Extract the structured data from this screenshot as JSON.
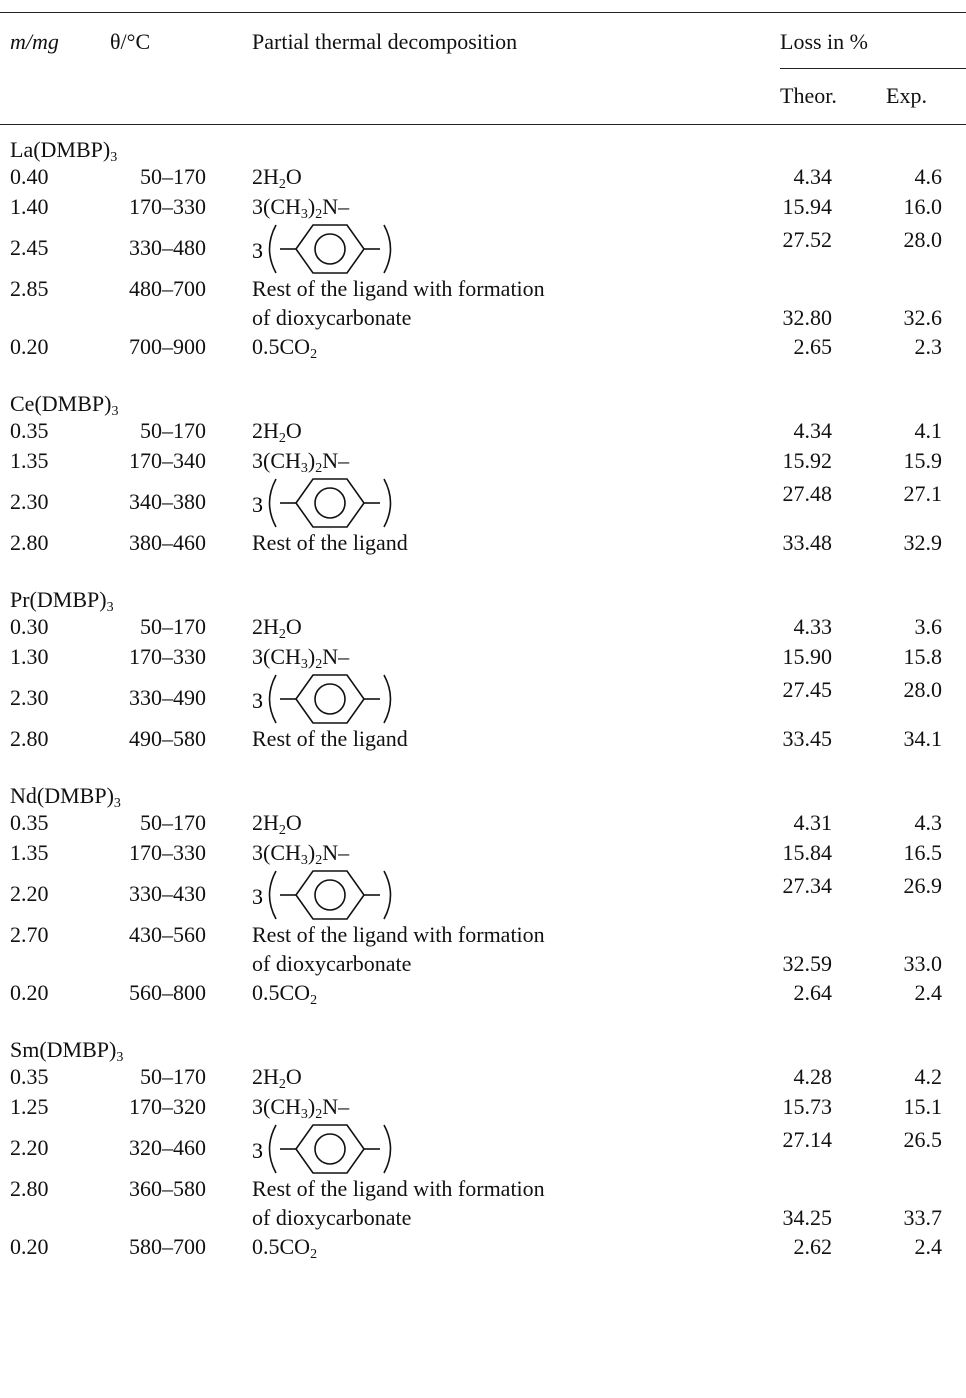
{
  "header": {
    "col_mass": "m/mg",
    "col_temp": "θ/°C",
    "col_desc": "Partial thermal decomposition",
    "col_loss": "Loss in %",
    "col_theor": "Theor.",
    "col_exp": "Exp."
  },
  "groups": [
    {
      "compound": "La(DMBP)₃",
      "rows": [
        {
          "m": "0.40",
          "t": "50–170",
          "desc": "2H₂O",
          "theor": "4.34",
          "exp": "4.6"
        },
        {
          "m": "1.40",
          "t": "170–330",
          "desc": "3(CH₃)₂N–",
          "theor": "15.94",
          "exp": "16.0"
        },
        {
          "m": "2.45",
          "t": "330–480",
          "desc": "",
          "benzene": true,
          "theor": "27.52",
          "exp": "28.0"
        },
        {
          "m": "2.85",
          "t": "480–700",
          "desc": "Rest of the ligand with formation",
          "desc2": "of dioxycarbonate",
          "theor": "32.80",
          "exp": "32.6"
        },
        {
          "m": "0.20",
          "t": "700–900",
          "desc": "0.5CO₂",
          "theor": "2.65",
          "exp": "2.3"
        }
      ]
    },
    {
      "compound": "Ce(DMBP)₃",
      "rows": [
        {
          "m": "0.35",
          "t": "50–170",
          "desc": "2H₂O",
          "theor": "4.34",
          "exp": "4.1"
        },
        {
          "m": "1.35",
          "t": "170–340",
          "desc": "3(CH₃)₂N–",
          "theor": "15.92",
          "exp": "15.9"
        },
        {
          "m": "2.30",
          "t": "340–380",
          "desc": "",
          "benzene": true,
          "theor": "27.48",
          "exp": "27.1"
        },
        {
          "m": "2.80",
          "t": "380–460",
          "desc": "Rest of the ligand",
          "theor": "33.48",
          "exp": "32.9"
        }
      ]
    },
    {
      "compound": "Pr(DMBP)₃",
      "rows": [
        {
          "m": "0.30",
          "t": "50–170",
          "desc": "2H₂O",
          "theor": "4.33",
          "exp": "3.6"
        },
        {
          "m": "1.30",
          "t": "170–330",
          "desc": "3(CH₃)₂N–",
          "theor": "15.90",
          "exp": "15.8"
        },
        {
          "m": "2.30",
          "t": "330–490",
          "desc": "",
          "benzene": true,
          "theor": "27.45",
          "exp": "28.0"
        },
        {
          "m": "2.80",
          "t": "490–580",
          "desc": "Rest of the ligand",
          "theor": "33.45",
          "exp": "34.1"
        }
      ]
    },
    {
      "compound": "Nd(DMBP)₃",
      "rows": [
        {
          "m": "0.35",
          "t": "50–170",
          "desc": "2H₂O",
          "theor": "4.31",
          "exp": "4.3"
        },
        {
          "m": "1.35",
          "t": "170–330",
          "desc": "3(CH₃)₂N–",
          "theor": "15.84",
          "exp": "16.5"
        },
        {
          "m": "2.20",
          "t": "330–430",
          "desc": "",
          "benzene": true,
          "theor": "27.34",
          "exp": "26.9"
        },
        {
          "m": "2.70",
          "t": "430–560",
          "desc": "Rest of the ligand with formation",
          "desc2": "of dioxycarbonate",
          "theor": "32.59",
          "exp": "33.0"
        },
        {
          "m": "0.20",
          "t": "560–800",
          "desc": "0.5CO₂",
          "theor": "2.64",
          "exp": "2.4"
        }
      ]
    },
    {
      "compound": "Sm(DMBP)₃",
      "rows": [
        {
          "m": "0.35",
          "t": "50–170",
          "desc": "2H₂O",
          "theor": "4.28",
          "exp": "4.2"
        },
        {
          "m": "1.25",
          "t": "170–320",
          "desc": "3(CH₃)₂N–",
          "theor": "15.73",
          "exp": "15.1"
        },
        {
          "m": "2.20",
          "t": "320–460",
          "desc": "",
          "benzene": true,
          "theor": "27.14",
          "exp": "26.5"
        },
        {
          "m": "2.80",
          "t": "360–580",
          "desc": "Rest of the ligand with formation",
          "desc2": "of dioxycarbonate",
          "theor": "34.25",
          "exp": "33.7"
        },
        {
          "m": "0.20",
          "t": "580–700",
          "desc": "0.5CO₂",
          "theor": "2.62",
          "exp": "2.4"
        }
      ]
    }
  ]
}
